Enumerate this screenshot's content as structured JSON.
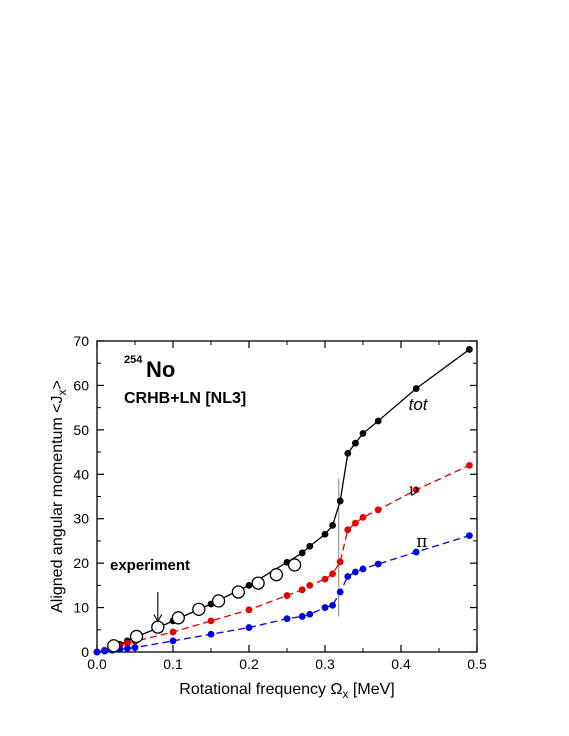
{
  "chart_data": {
    "type": "line",
    "nucleus": {
      "mass": "254",
      "symbol": "No"
    },
    "model": "CRHB+LN [NL3]",
    "xlabel": {
      "main": "Rotational frequency ",
      "symbol": "Ω",
      "sub": "x",
      "unit": " [MeV]"
    },
    "ylabel": {
      "main": "Aligned angular momentum <J",
      "sub": "x",
      "end": ">"
    },
    "xlim": [
      0,
      0.5
    ],
    "ylim": [
      0,
      70
    ],
    "xticks": [
      0.0,
      0.1,
      0.2,
      0.3,
      0.4,
      0.5
    ],
    "xtick_labels": [
      "0.0",
      "0.1",
      "0.2",
      "0.3",
      "0.4",
      "0.5"
    ],
    "yticks": [
      0,
      10,
      20,
      30,
      40,
      50,
      60,
      70
    ],
    "ytick_labels": [
      "0",
      "10",
      "20",
      "30",
      "40",
      "50",
      "60",
      "70"
    ],
    "crossing_line_x": 0.318,
    "series": [
      {
        "name": "tot",
        "color": "#000000",
        "dash": "solid",
        "x": [
          0.0,
          0.01,
          0.02,
          0.03,
          0.04,
          0.05,
          0.08,
          0.1,
          0.15,
          0.2,
          0.25,
          0.27,
          0.28,
          0.3,
          0.31,
          0.32,
          0.33,
          0.34,
          0.35,
          0.37,
          0.42,
          0.49
        ],
        "y": [
          0.0,
          0.4,
          1.0,
          1.7,
          2.5,
          3.3,
          5.4,
          7.0,
          10.8,
          15.0,
          20.2,
          22.3,
          23.8,
          26.5,
          28.5,
          34.0,
          44.7,
          47.0,
          49.2,
          52.0,
          59.3,
          68.1
        ]
      },
      {
        "name": "ν",
        "color": "#e60000",
        "dash": "dashed",
        "x": [
          0.0,
          0.01,
          0.02,
          0.03,
          0.04,
          0.05,
          0.1,
          0.15,
          0.2,
          0.25,
          0.27,
          0.28,
          0.3,
          0.31,
          0.32,
          0.33,
          0.34,
          0.35,
          0.37,
          0.42,
          0.49
        ],
        "y": [
          0.0,
          0.4,
          0.9,
          1.4,
          2.0,
          2.4,
          4.5,
          7.0,
          9.5,
          12.7,
          14.0,
          15.0,
          16.4,
          17.6,
          20.3,
          27.5,
          29.0,
          30.3,
          32.0,
          36.5,
          42.0
        ]
      },
      {
        "name": "π",
        "color": "#0000e6",
        "dash": "dashed",
        "x": [
          0.0,
          0.01,
          0.02,
          0.03,
          0.04,
          0.05,
          0.1,
          0.15,
          0.2,
          0.25,
          0.27,
          0.28,
          0.3,
          0.31,
          0.32,
          0.33,
          0.34,
          0.35,
          0.37,
          0.42,
          0.49
        ],
        "y": [
          0.0,
          0.2,
          0.4,
          0.6,
          0.8,
          1.0,
          2.5,
          4.0,
          5.5,
          7.5,
          8.0,
          8.5,
          10.0,
          10.5,
          13.5,
          17.0,
          18.0,
          18.7,
          19.8,
          22.5,
          26.2
        ]
      }
    ],
    "experiment": {
      "label": "experiment",
      "x": [
        0.022,
        0.052,
        0.08,
        0.107,
        0.134,
        0.16,
        0.186,
        0.212,
        0.236,
        0.26
      ],
      "y": [
        1.4,
        3.5,
        5.6,
        7.7,
        9.6,
        11.5,
        13.5,
        15.5,
        17.4,
        19.6
      ],
      "arrow_from": [
        0.08,
        13.5
      ],
      "arrow_to": [
        0.08,
        6.9
      ]
    },
    "annotations": [
      {
        "text": "tot",
        "x": 0.41,
        "y": 54.5,
        "series": 0
      },
      {
        "text": "ν",
        "x": 0.41,
        "y": 35.2,
        "series": 1
      },
      {
        "text": "π",
        "x": 0.42,
        "y": 23.6,
        "series": 2
      }
    ],
    "grid": false,
    "legend": "none"
  }
}
